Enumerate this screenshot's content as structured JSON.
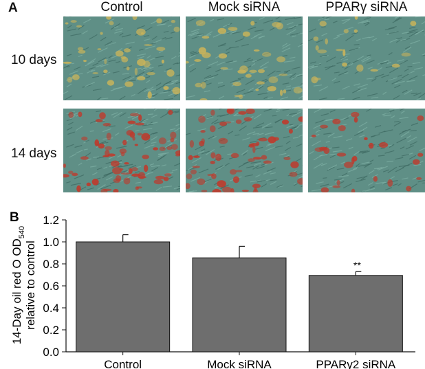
{
  "panel_a": {
    "letter": "A",
    "columns": [
      "Control",
      "Mock siRNA",
      "PPARγ siRNA"
    ],
    "rows": [
      "10 days",
      "14 days"
    ],
    "images": [
      {
        "row": 0,
        "col": 0,
        "stain_density": 0.45,
        "description": "micrograph"
      },
      {
        "row": 0,
        "col": 1,
        "stain_density": 0.4,
        "description": "micrograph"
      },
      {
        "row": 0,
        "col": 2,
        "stain_density": 0.2,
        "description": "micrograph"
      },
      {
        "row": 1,
        "col": 0,
        "stain_density": 0.75,
        "description": "micrograph"
      },
      {
        "row": 1,
        "col": 1,
        "stain_density": 0.65,
        "description": "micrograph"
      },
      {
        "row": 1,
        "col": 2,
        "stain_density": 0.3,
        "description": "micrograph"
      }
    ],
    "colors": {
      "background_green": "#5f8f86",
      "early_stain": "#c9b35a",
      "late_stain": "#c0392b"
    }
  },
  "panel_b": {
    "letter": "B",
    "ylabel_line1_prefix": "14-Day oil red O OD",
    "ylabel_line1_sub": "540",
    "ylabel_line2": "relative to control",
    "significance": "**"
  },
  "chart_data": {
    "type": "bar",
    "categories": [
      "Control",
      "Mock siRNA",
      "PPARγ2 siRNA"
    ],
    "values": [
      1.0,
      0.855,
      0.695
    ],
    "errors": [
      0.065,
      0.105,
      0.035
    ],
    "ylim": [
      0.0,
      1.2
    ],
    "yticks": [
      "0.0",
      "0.2",
      "0.4",
      "0.6",
      "0.8",
      "1.0",
      "1.2"
    ],
    "bar_color": "#6e6e6e",
    "annotations": [
      {
        "category": "PPARγ2 siRNA",
        "text": "**"
      }
    ]
  }
}
